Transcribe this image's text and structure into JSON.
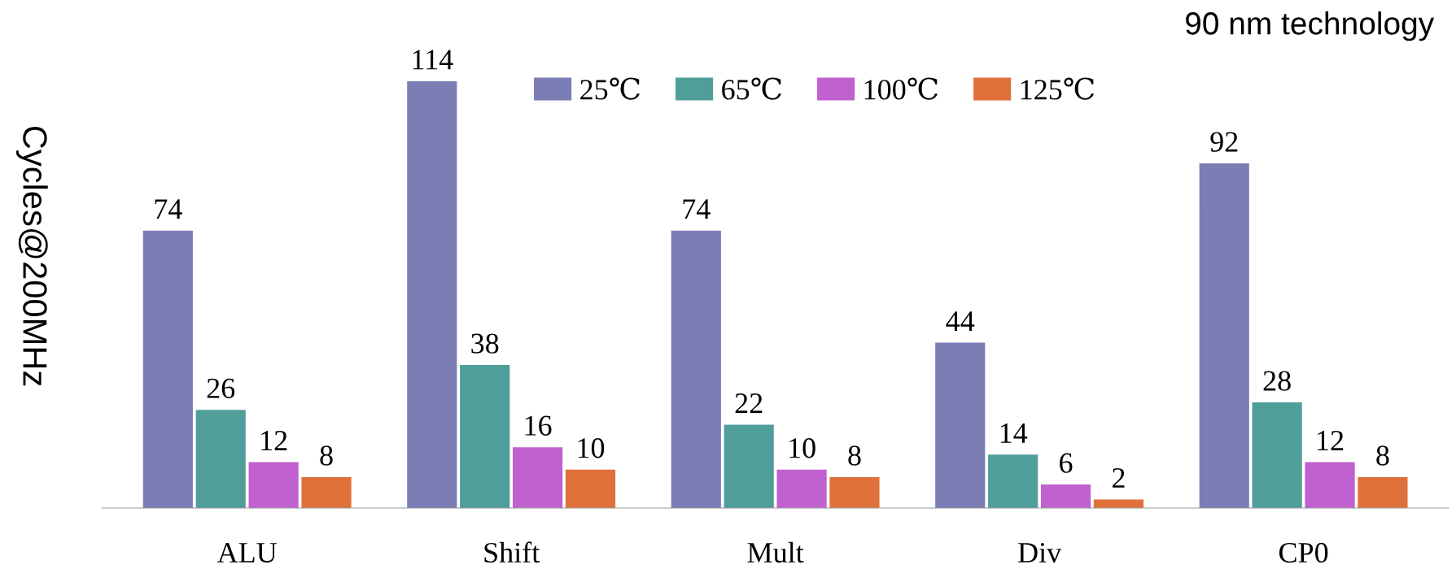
{
  "chart_data": {
    "type": "bar",
    "title": "90 nm technology",
    "ylabel": "Cycles@200MHz",
    "categories": [
      "ALU",
      "Shift",
      "Mult",
      "Div",
      "CP0"
    ],
    "series": [
      {
        "name": "25℃",
        "color": "#7b7db5",
        "values": [
          74,
          114,
          74,
          44,
          92
        ]
      },
      {
        "name": "65℃",
        "color": "#4f9e9a",
        "values": [
          26,
          38,
          22,
          14,
          28
        ]
      },
      {
        "name": "100℃",
        "color": "#c160cf",
        "values": [
          12,
          16,
          10,
          6,
          12
        ]
      },
      {
        "name": "125℃",
        "color": "#e0703a",
        "values": [
          8,
          10,
          8,
          2,
          8
        ]
      }
    ],
    "data_labels": true,
    "legend": "top",
    "grid": false
  }
}
